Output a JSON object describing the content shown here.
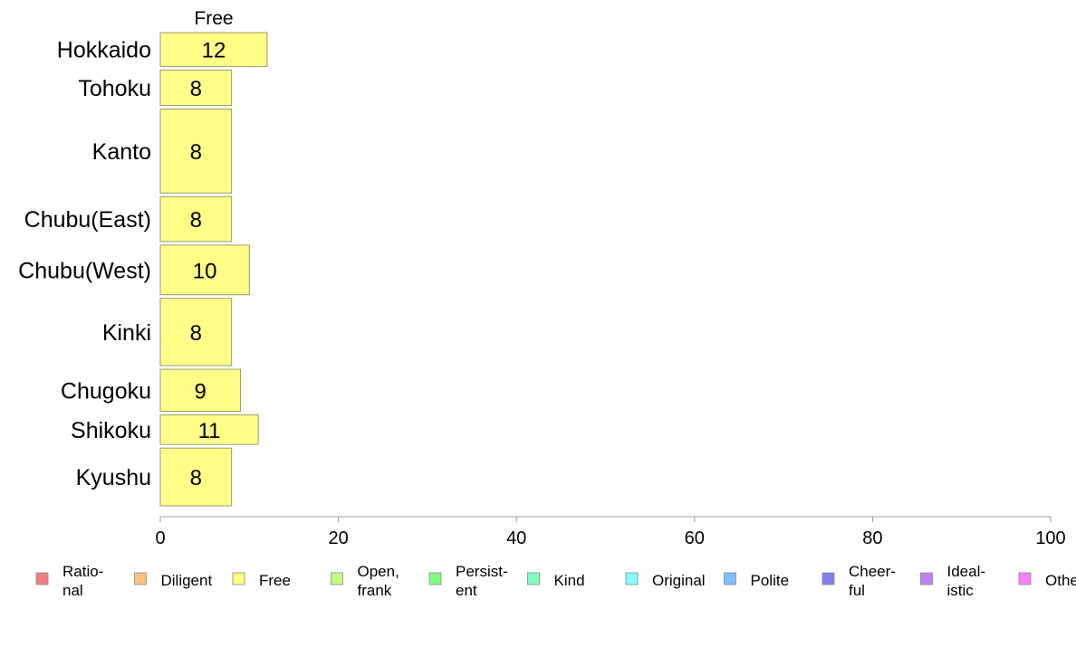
{
  "chart_data": {
    "type": "bar",
    "orientation": "horizontal",
    "facet_title": "Free",
    "categories": [
      "Hokkaido",
      "Tohoku",
      "Kanto",
      "Chubu(East)",
      "Chubu(West)",
      "Kinki",
      "Chugoku",
      "Shikoku",
      "Kyushu"
    ],
    "series": [
      {
        "name": "Free",
        "values": [
          12,
          8,
          8,
          8,
          10,
          8,
          9,
          11,
          8
        ]
      }
    ],
    "bar_widths_relative": [
      0.71,
      0.74,
      1.76,
      0.94,
      1.04,
      1.41,
      0.88,
      0.62,
      1.21
    ],
    "bar_color": "#FFFF88",
    "bar_stroke": "#9a9a6e",
    "xlim": [
      0,
      100
    ],
    "xticks": [
      0,
      20,
      40,
      60,
      80,
      100
    ],
    "grid": false,
    "legend": {
      "placement": "bottom",
      "items": [
        {
          "label": [
            "Ratio-",
            "nal"
          ],
          "color": "#F08080"
        },
        {
          "label": [
            "Diligent"
          ],
          "color": "#FFC080"
        },
        {
          "label": [
            "Free"
          ],
          "color": "#FFFF80"
        },
        {
          "label": [
            "Open,",
            "frank"
          ],
          "color": "#C0FF80"
        },
        {
          "label": [
            "Persist-",
            "ent"
          ],
          "color": "#80FF80"
        },
        {
          "label": [
            "Kind"
          ],
          "color": "#80FFC0"
        },
        {
          "label": [
            "Original"
          ],
          "color": "#80FFFF"
        },
        {
          "label": [
            "Polite"
          ],
          "color": "#80C0FF"
        },
        {
          "label": [
            "Cheer-",
            "ful"
          ],
          "color": "#8080F0"
        },
        {
          "label": [
            "Ideal-",
            "istic"
          ],
          "color": "#C080F0"
        },
        {
          "label": [
            "Others"
          ],
          "color": "#FF80FF"
        }
      ]
    }
  }
}
